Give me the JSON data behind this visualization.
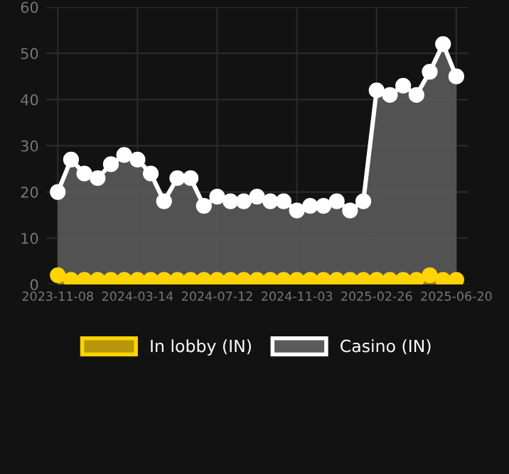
{
  "chart_data": {
    "type": "area",
    "categories": [
      "2023-11-08",
      null,
      null,
      null,
      null,
      null,
      "2024-03-14",
      null,
      null,
      null,
      null,
      null,
      "2024-07-12",
      null,
      null,
      null,
      null,
      null,
      "2024-11-03",
      null,
      null,
      null,
      null,
      null,
      "2025-02-26",
      null,
      null,
      null,
      null,
      null,
      "2025-06-20"
    ],
    "series": [
      {
        "name": "In lobby (IN)",
        "color": "#ffd400",
        "values": [
          2,
          1,
          1,
          1,
          1,
          1,
          1,
          1,
          1,
          1,
          1,
          1,
          1,
          1,
          1,
          1,
          1,
          1,
          1,
          1,
          1,
          1,
          1,
          1,
          1,
          1,
          1,
          1,
          2,
          1,
          1
        ]
      },
      {
        "name": "Casino (IN)",
        "color": "#ffffff",
        "values": [
          20,
          27,
          24,
          23,
          26,
          28,
          27,
          24,
          18,
          23,
          23,
          17,
          19,
          18,
          18,
          19,
          18,
          18,
          16,
          17,
          17,
          18,
          16,
          18,
          42,
          41,
          43,
          41,
          46,
          52,
          45
        ]
      }
    ],
    "ylim": [
      0,
      60
    ],
    "yticks": [
      0,
      10,
      20,
      30,
      40,
      50,
      60
    ],
    "grid": true,
    "legend": "bottom",
    "marker": "circle",
    "line_style": "solid"
  }
}
